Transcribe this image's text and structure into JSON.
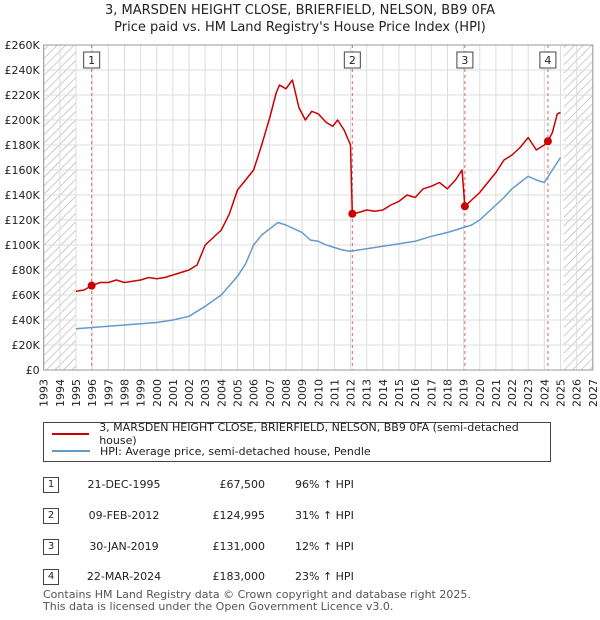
{
  "header": {
    "title": "3, MARSDEN HEIGHT CLOSE, BRIERFIELD, NELSON, BB9 0FA",
    "subtitle": "Price paid vs. HM Land Registry's House Price Index (HPI)"
  },
  "colors": {
    "property": "#cc0000",
    "hpi": "#6699cc",
    "hatch": "#bbbbbb",
    "vline": "#dd6666"
  },
  "chart_data": {
    "type": "line",
    "xlim": [
      1993,
      2027
    ],
    "ylim": [
      0,
      260000
    ],
    "x_ticks": [
      "1993",
      "1994",
      "1995",
      "1996",
      "1997",
      "1998",
      "1999",
      "2000",
      "2001",
      "2002",
      "2003",
      "2004",
      "2005",
      "2006",
      "2007",
      "2008",
      "2009",
      "2010",
      "2011",
      "2012",
      "2013",
      "2014",
      "2015",
      "2016",
      "2017",
      "2018",
      "2019",
      "2020",
      "2021",
      "2022",
      "2023",
      "2024",
      "2025",
      "2026",
      "2027"
    ],
    "y_ticks": [
      "£0",
      "£20K",
      "£40K",
      "£60K",
      "£80K",
      "£100K",
      "£120K",
      "£140K",
      "£160K",
      "£180K",
      "£200K",
      "£220K",
      "£240K",
      "£260K"
    ],
    "grid": true,
    "hatched_ranges": [
      [
        1993,
        1995.0
      ],
      [
        2025.2,
        2027
      ]
    ],
    "series": [
      {
        "name": "3, MARSDEN HEIGHT CLOSE, BRIERFIELD, NELSON, BB9 0FA (semi-detached house)",
        "x": [
          1995.0,
          1995.5,
          1995.97,
          1996.5,
          1997.0,
          1997.5,
          1998.0,
          1998.5,
          1999.0,
          1999.5,
          2000.0,
          2000.5,
          2001.0,
          2001.5,
          2002.0,
          2002.5,
          2003.0,
          2003.5,
          2004.0,
          2004.5,
          2005.0,
          2005.5,
          2006.0,
          2006.5,
          2007.0,
          2007.4,
          2007.6,
          2008.0,
          2008.4,
          2008.8,
          2009.2,
          2009.6,
          2010.0,
          2010.5,
          2010.9,
          2011.2,
          2011.6,
          2012.0,
          2012.11,
          2012.5,
          2013.0,
          2013.5,
          2014.0,
          2014.5,
          2015.0,
          2015.5,
          2016.0,
          2016.5,
          2017.0,
          2017.5,
          2018.0,
          2018.5,
          2018.9,
          2019.08,
          2019.5,
          2020.0,
          2020.5,
          2021.0,
          2021.5,
          2022.0,
          2022.5,
          2023.0,
          2023.5,
          2024.0,
          2024.22,
          2024.5,
          2024.8,
          2025.0
        ],
        "y": [
          63000,
          64000,
          67500,
          70000,
          70000,
          72000,
          70000,
          71000,
          72000,
          74000,
          73000,
          74000,
          76000,
          78000,
          80000,
          84000,
          100000,
          106000,
          112000,
          125000,
          144000,
          152000,
          160000,
          180000,
          202000,
          222000,
          228000,
          225000,
          232000,
          210000,
          200000,
          207000,
          205000,
          198000,
          195000,
          200000,
          192000,
          180000,
          124995,
          126000,
          128000,
          127000,
          128000,
          132000,
          135000,
          140000,
          138000,
          145000,
          147000,
          150000,
          145000,
          152000,
          160000,
          131000,
          136000,
          142000,
          150000,
          158000,
          168000,
          172000,
          178000,
          186000,
          176000,
          180000,
          183000,
          190000,
          205000,
          206000
        ]
      },
      {
        "name": "HPI: Average price, semi-detached house, Pendle",
        "x": [
          1995.0,
          1996.0,
          1997.0,
          1998.0,
          1999.0,
          2000.0,
          2001.0,
          2002.0,
          2003.0,
          2004.0,
          2005.0,
          2005.5,
          2006.0,
          2006.5,
          2007.0,
          2007.5,
          2008.0,
          2008.5,
          2009.0,
          2009.5,
          2010.0,
          2010.5,
          2011.0,
          2011.5,
          2012.0,
          2012.5,
          2013.0,
          2014.0,
          2015.0,
          2016.0,
          2017.0,
          2018.0,
          2019.0,
          2019.5,
          2020.0,
          2020.5,
          2021.0,
          2021.5,
          2022.0,
          2022.5,
          2023.0,
          2023.5,
          2024.0,
          2024.5,
          2025.0
        ],
        "y": [
          33000,
          34000,
          35000,
          36000,
          37000,
          38000,
          40000,
          43000,
          51000,
          60000,
          75000,
          85000,
          100000,
          108000,
          113000,
          118000,
          116000,
          113000,
          110000,
          104000,
          103000,
          100000,
          98000,
          96000,
          95000,
          96000,
          97000,
          99000,
          101000,
          103000,
          107000,
          110000,
          114000,
          116000,
          120000,
          126000,
          132000,
          138000,
          145000,
          150000,
          155000,
          152000,
          150000,
          160000,
          170000
        ]
      }
    ],
    "sales": [
      {
        "label": "1",
        "x": 1995.97,
        "y": 67500
      },
      {
        "label": "2",
        "x": 2012.11,
        "y": 124995
      },
      {
        "label": "3",
        "x": 2019.08,
        "y": 131000
      },
      {
        "label": "4",
        "x": 2024.22,
        "y": 183000
      }
    ]
  },
  "legend": {
    "property": "3, MARSDEN HEIGHT CLOSE, BRIERFIELD, NELSON, BB9 0FA (semi-detached house)",
    "hpi": "HPI: Average price, semi-detached house, Pendle"
  },
  "sales_table": [
    {
      "num": "1",
      "date": "21-DEC-1995",
      "price": "£67,500",
      "hpi": "96% ↑ HPI"
    },
    {
      "num": "2",
      "date": "09-FEB-2012",
      "price": "£124,995",
      "hpi": "31% ↑ HPI"
    },
    {
      "num": "3",
      "date": "30-JAN-2019",
      "price": "£131,000",
      "hpi": "12% ↑ HPI"
    },
    {
      "num": "4",
      "date": "22-MAR-2024",
      "price": "£183,000",
      "hpi": "23% ↑ HPI"
    }
  ],
  "footer": {
    "line1": "Contains HM Land Registry data © Crown copyright and database right 2025.",
    "line2": "This data is licensed under the Open Government Licence v3.0."
  }
}
